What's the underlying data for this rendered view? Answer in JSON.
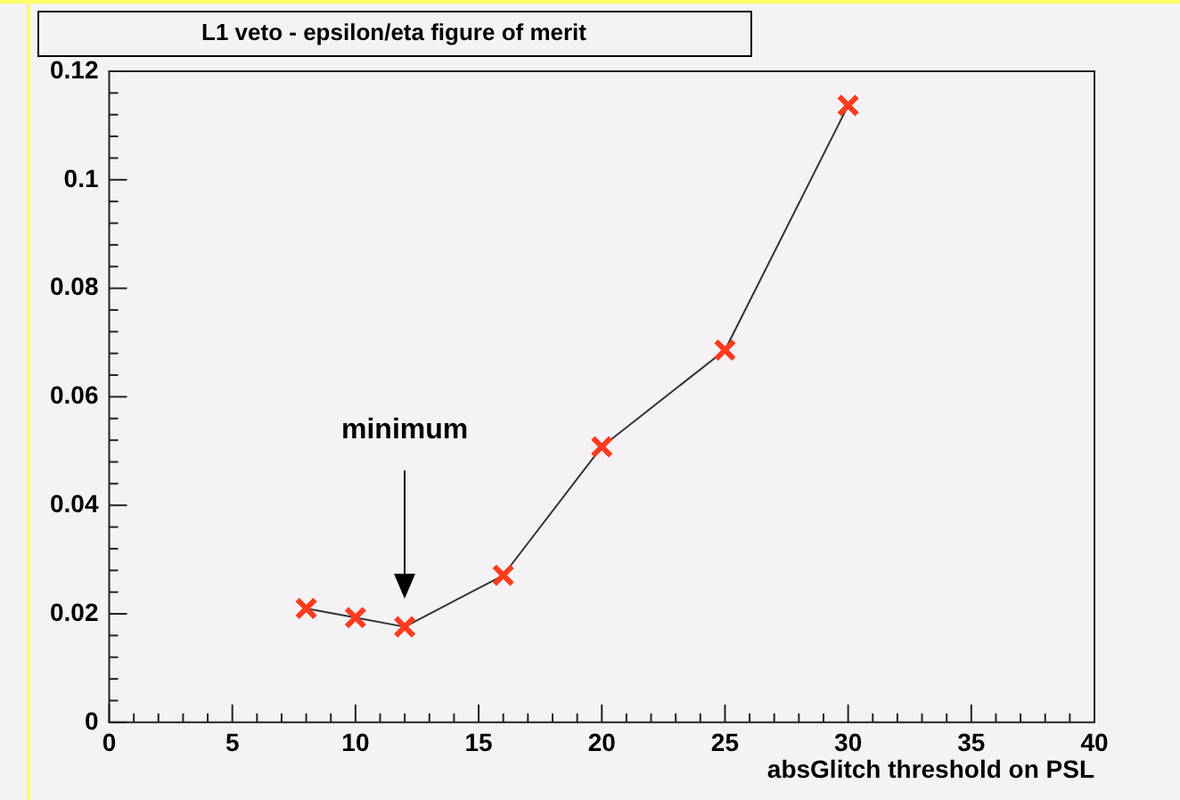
{
  "chart_data": {
    "type": "line",
    "title": "L1 veto - epsilon/eta figure of merit",
    "xlabel": "absGlitch threshold on PSL",
    "x": [
      8,
      10,
      12,
      16,
      20,
      25,
      30
    ],
    "series": [
      {
        "color": "#ff3b1f",
        "values": [
          0.021,
          0.0193,
          0.0176,
          0.0271,
          0.0508,
          0.0686,
          0.1137
        ]
      }
    ],
    "xlim": [
      0,
      40
    ],
    "xticks": [
      0,
      5,
      10,
      15,
      20,
      25,
      30,
      35,
      40
    ],
    "ylim": [
      0,
      0.12
    ],
    "yticks": [
      0,
      0.02,
      0.04,
      0.06,
      0.08,
      0.1,
      0.12
    ],
    "annotations": [
      "minimum"
    ],
    "grid": false,
    "legend": false,
    "marker": "cross",
    "line_style": "solid"
  }
}
